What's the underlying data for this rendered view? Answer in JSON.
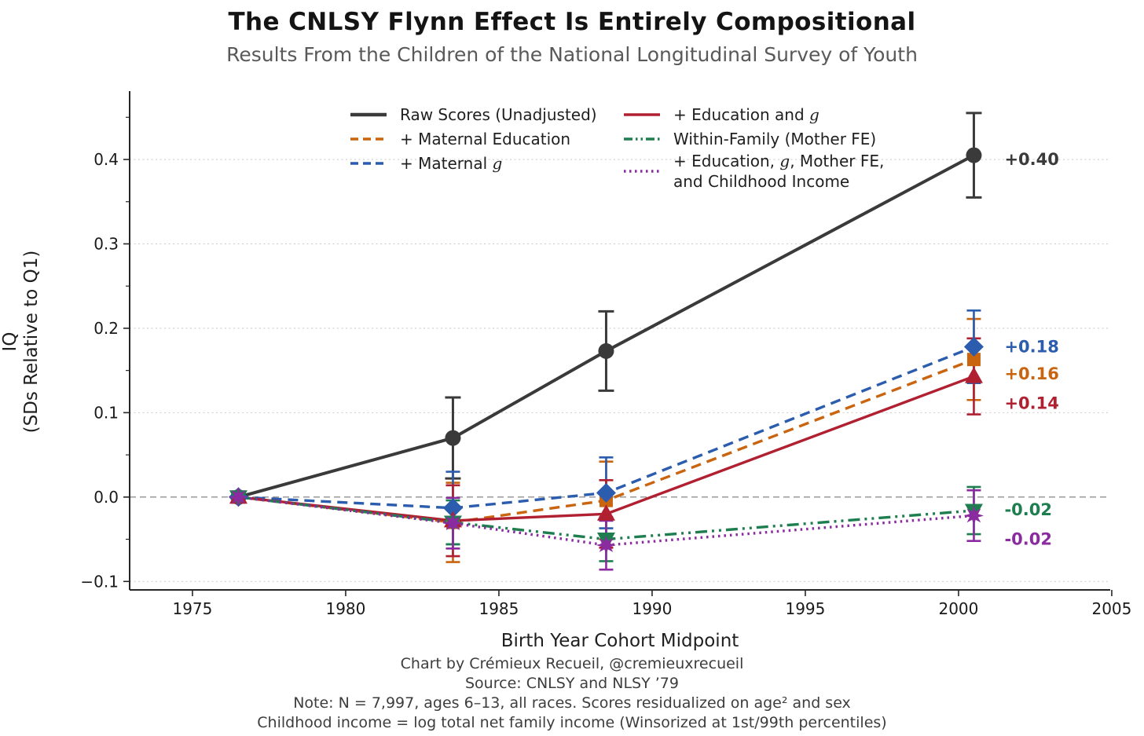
{
  "chart_data": {
    "type": "line",
    "title": "The CNLSY Flynn Effect Is Entirely Compositional",
    "subtitle": "Results From the Children of the National Longitudinal Survey of Youth",
    "xlabel": "Birth Year Cohort Midpoint",
    "ylabel_lines": [
      "IQ",
      "(SDs Relative to Q1)"
    ],
    "x": [
      1976.5,
      1983.5,
      1988.5,
      2000.5
    ],
    "xlim": [
      1972.95,
      2004.95
    ],
    "ylim": [
      -0.11,
      0.481
    ],
    "xticks": [
      1975,
      1980,
      1985,
      1990,
      1995,
      2000,
      2005
    ],
    "yticks": [
      -0.1,
      0.0,
      0.1,
      0.2,
      0.3,
      0.4
    ],
    "yminorticks": [
      -0.05,
      0.05,
      0.15,
      0.25,
      0.35,
      0.45
    ],
    "grid": "horizontal dashed gridlines at y ticks, dashed zero line",
    "grid_color": "#cccccc",
    "zero_line_color": "#999999",
    "axis_color": "#262626",
    "tick_label_color": "#1a1a1a",
    "legend_position": "upper center, two columns, no frame",
    "series": [
      {
        "name": "Raw Scores (Unadjusted)",
        "color": "#3a3a3a",
        "line_style": "solid",
        "line_width": 4,
        "marker": "circle",
        "values": [
          0.0,
          0.07,
          0.173,
          0.405
        ],
        "errors": [
          0,
          0.048,
          0.047,
          0.05
        ],
        "end_label": "+0.40"
      },
      {
        "name": "+ Maternal Education",
        "color": "#c9640f",
        "line_style": "dashed",
        "line_width": 3.4,
        "marker": "square",
        "values": [
          0.0,
          -0.03,
          -0.004,
          0.163
        ],
        "errors": [
          0,
          0.047,
          0.046,
          0.048
        ],
        "end_label": "+0.16"
      },
      {
        "name": "+ Maternal g",
        "color": "#2b5cad",
        "line_style": "dashed",
        "line_width": 3.4,
        "marker": "diamond",
        "values": [
          0.0,
          -0.013,
          0.005,
          0.178
        ],
        "errors": [
          0,
          0.043,
          0.042,
          0.043
        ],
        "end_label": "+0.18"
      },
      {
        "name": "+ Education and g",
        "color": "#b02031",
        "line_style": "solid",
        "line_width": 3.4,
        "marker": "triangle-up",
        "values": [
          0.0,
          -0.028,
          -0.02,
          0.143
        ],
        "errors": [
          0,
          0.042,
          0.04,
          0.045
        ],
        "end_label": "+0.14"
      },
      {
        "name": "Within-Family (Mother FE)",
        "color": "#1e7e4f",
        "line_style": "dashdot",
        "line_width": 3.4,
        "marker": "triangle-down",
        "values": [
          0.0,
          -0.03,
          -0.05,
          -0.016
        ],
        "errors": [
          0,
          0.026,
          0.026,
          0.028
        ],
        "end_label": "-0.02"
      },
      {
        "name": "+ Education, g, Mother FE,\nand Childhood Income",
        "color": "#8a2ba0",
        "line_style": "dotted",
        "line_width": 3.4,
        "marker": "star8",
        "values": [
          0.0,
          -0.031,
          -0.057,
          -0.022
        ],
        "errors": [
          0,
          0.03,
          0.029,
          0.03
        ],
        "end_label": "-0.02"
      }
    ],
    "legend": {
      "columns": [
        [
          0,
          1,
          2
        ],
        [
          3,
          4,
          5
        ]
      ]
    },
    "annotations": [
      {
        "text": "+0.40",
        "color": "#3a3a3a",
        "x": 2001.5,
        "y": 0.4
      },
      {
        "text": "+0.18",
        "color": "#2b5cad",
        "x": 2001.5,
        "y": 0.178
      },
      {
        "text": "+0.16",
        "color": "#c9640f",
        "x": 2001.5,
        "y": 0.146
      },
      {
        "text": "+0.14",
        "color": "#b02031",
        "x": 2001.5,
        "y": 0.111
      },
      {
        "text": "-0.02",
        "color": "#1e7e4f",
        "x": 2001.5,
        "y": -0.015
      },
      {
        "text": "-0.02",
        "color": "#8a2ba0",
        "x": 2001.5,
        "y": -0.05
      }
    ],
    "footnotes": [
      "Chart by Crémieux Recueil, @cremieuxrecueil",
      "Source: CNLSY and NLSY ’79",
      "Note: N = 7,997, ages 6–13, all races. Scores residualized on age² and sex",
      "Childhood income = log total net family income (Winsorized at 1st/99th percentiles)"
    ]
  }
}
